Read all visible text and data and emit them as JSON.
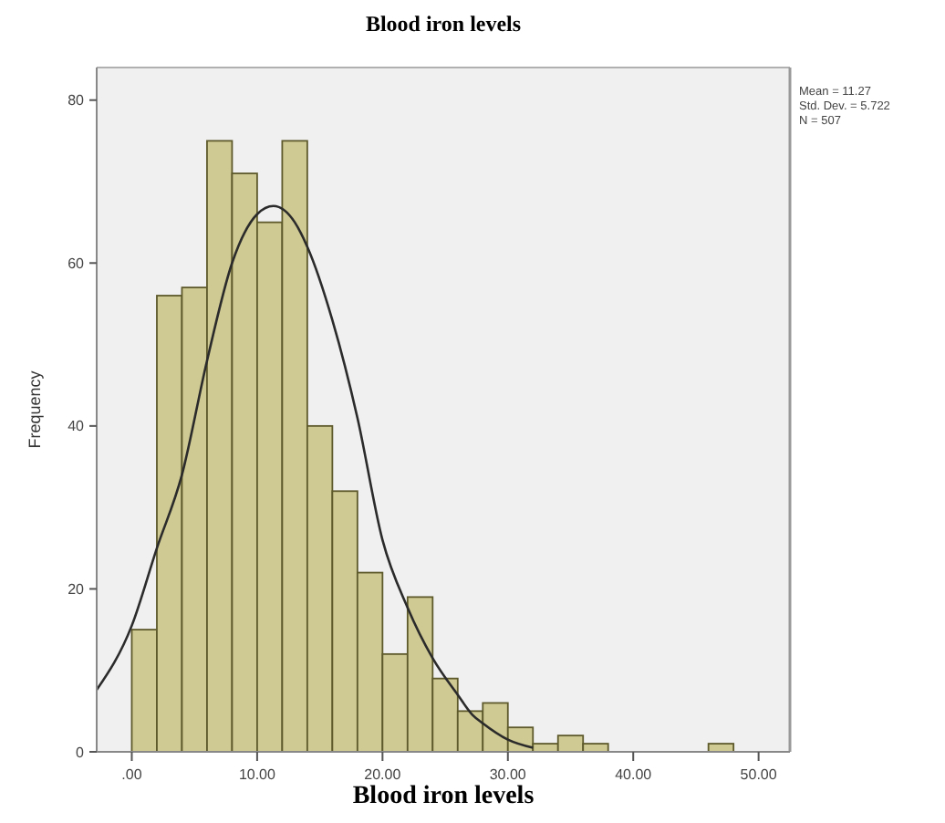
{
  "chart_data": {
    "type": "histogram",
    "title": "Blood iron levels",
    "xlabel": "Blood iron levels",
    "ylabel": "Frequency",
    "bins": [
      0,
      2,
      4,
      6,
      8,
      10,
      12,
      14,
      16,
      18,
      20,
      22,
      24,
      26,
      28,
      30,
      32,
      34,
      36,
      38,
      40,
      42,
      44,
      46,
      48
    ],
    "values": [
      15,
      56,
      57,
      75,
      71,
      65,
      75,
      40,
      32,
      22,
      12,
      19,
      9,
      5,
      6,
      3,
      1,
      2,
      1,
      0,
      0,
      0,
      0,
      1
    ],
    "color": "#cfc993",
    "series": [
      {
        "type": "line",
        "color": "#2b2b2b",
        "x": [
          -2.8,
          0,
          2,
          4,
          6,
          8,
          10,
          11.3,
          13,
          14,
          16,
          18,
          20,
          22,
          24,
          26,
          27.2,
          28,
          30,
          32
        ],
        "values": [
          7.6,
          15.5,
          25,
          34,
          48,
          60,
          66,
          67,
          65,
          62,
          53,
          41,
          26,
          17.7,
          11.5,
          7,
          4.5,
          3.5,
          1.5,
          0.5
        ]
      }
    ],
    "xlim": [
      -2.8,
      52.5
    ],
    "ylim": [
      0,
      84
    ],
    "xticks": [
      {
        "value": 0,
        "label": ".00"
      },
      {
        "value": 10,
        "label": "10.00"
      },
      {
        "value": 20,
        "label": "20.00"
      },
      {
        "value": 30,
        "label": "30.00"
      },
      {
        "value": 40,
        "label": "40.00"
      },
      {
        "value": 50,
        "label": "50.00"
      }
    ],
    "yticks": [
      0,
      20,
      40,
      60,
      80
    ],
    "annotations": [
      "Mean = 11.27",
      "Std. Dev. = 5.722",
      "N = 507"
    ]
  }
}
